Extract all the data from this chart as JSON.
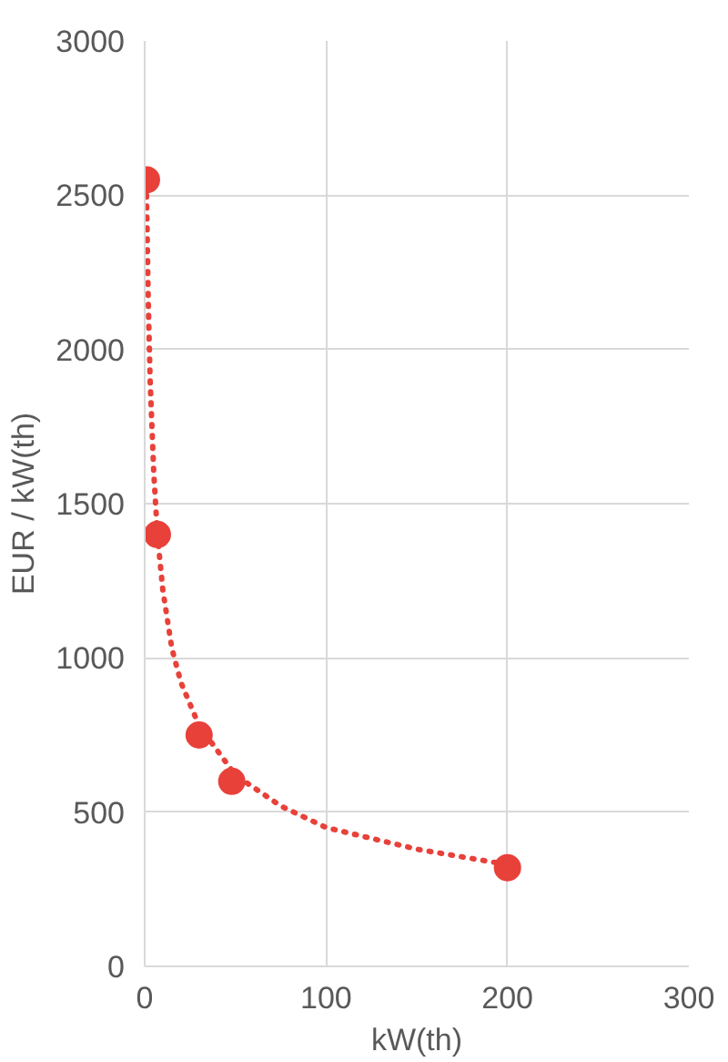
{
  "chart_data": {
    "type": "scatter",
    "xlabel": "kW(th)",
    "ylabel": "EUR / kW(th)",
    "xlim": [
      0,
      300
    ],
    "ylim": [
      0,
      3000
    ],
    "xticks": [
      0,
      100,
      200,
      300
    ],
    "yticks": [
      0,
      500,
      1000,
      1500,
      2000,
      2500,
      3000
    ],
    "grid": true,
    "marker": "circle",
    "series": [
      {
        "color": "#e8413a",
        "x": [
          1,
          7,
          30,
          48,
          200
        ],
        "values": [
          2550,
          1400,
          750,
          600,
          320
        ]
      },
      {
        "type": "line",
        "color": "#e8413a",
        "line_style": "dotted",
        "marker": "none",
        "x": [
          1,
          2,
          3,
          5,
          7,
          10,
          15,
          20,
          30,
          50,
          75,
          100,
          150,
          200
        ],
        "values": [
          2500,
          2150,
          1900,
          1600,
          1400,
          1220,
          1030,
          920,
          780,
          620,
          520,
          450,
          380,
          330
        ]
      }
    ]
  }
}
